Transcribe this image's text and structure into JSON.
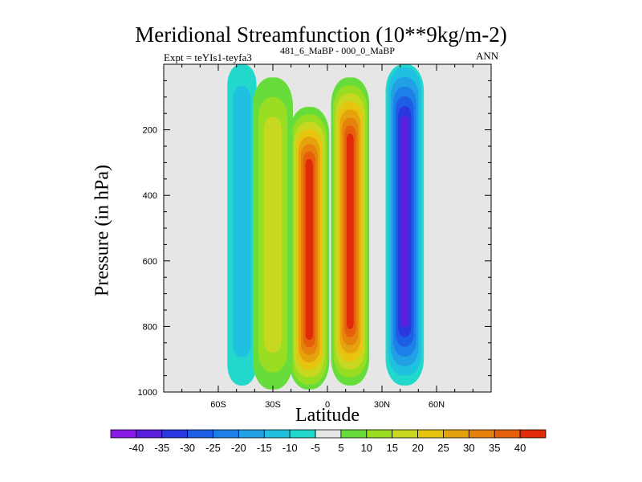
{
  "chart_data": {
    "type": "heatmap",
    "title": "Meridional Streamfunction (10**9kg/m-2)",
    "subtitle_left": "Expt = teYIs1-teyfa3",
    "subtitle_super": "481_6_MaBP - 000_0_MaBP",
    "subtitle_right": "ANN",
    "xlabel": "Latitude",
    "ylabel": "Pressure (in hPa)",
    "x_range": [
      -90,
      90
    ],
    "y_range": [
      0,
      1000
    ],
    "x_ticks": [
      -60,
      -30,
      0,
      30,
      60
    ],
    "x_tick_labels": [
      "60S",
      "30S",
      "0",
      "30N",
      "60N"
    ],
    "y_ticks": [
      200,
      400,
      600,
      800,
      1000
    ],
    "y_tick_labels": [
      "200",
      "400",
      "600",
      "800",
      "1000"
    ],
    "colorbar": {
      "labels": [
        "-40",
        "-35",
        "-30",
        "-25",
        "-20",
        "-15",
        "-10",
        "-5",
        "5",
        "10",
        "15",
        "20",
        "25",
        "30",
        "35",
        "40"
      ],
      "colors": [
        "#8a1be6",
        "#5a1fdc",
        "#2a37e0",
        "#1e5ee6",
        "#1d7fe8",
        "#22a0e6",
        "#1fc0e0",
        "#22d8cc",
        "#e6e6e6",
        "#66dd3a",
        "#99dd22",
        "#c8d820",
        "#e6c410",
        "#e6a20c",
        "#e6820c",
        "#e6600c",
        "#e02a08"
      ]
    },
    "background_color": "#e6e6e6",
    "features": [
      {
        "name": "southern-hadley-cell",
        "lat_range": [
          -18,
          -2
        ],
        "p_range": [
          150,
          980
        ],
        "peak_value": 40
      },
      {
        "name": "northern-hadley-cell",
        "lat_range": [
          5,
          20
        ],
        "p_range": [
          60,
          960
        ],
        "peak_value": 40
      },
      {
        "name": "northern-ferrel-cell",
        "lat_range": [
          35,
          50
        ],
        "p_range": [
          0,
          960
        ],
        "peak_value": -35
      },
      {
        "name": "southern-ferrel-cell",
        "lat_range": [
          -52,
          -42
        ],
        "p_range": [
          0,
          960
        ],
        "peak_value": -10
      },
      {
        "name": "southern-positive-band",
        "lat_range": [
          -38,
          -22
        ],
        "p_range": [
          60,
          980
        ],
        "peak_value": 15
      }
    ]
  }
}
